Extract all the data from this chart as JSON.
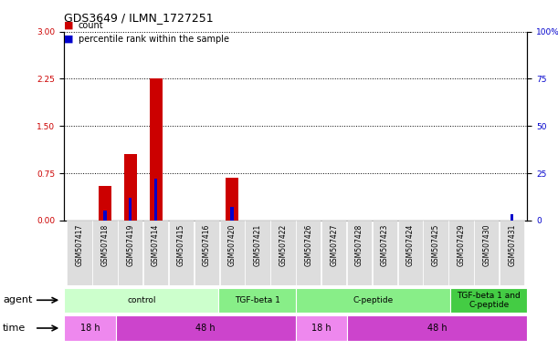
{
  "title": "GDS3649 / ILMN_1727251",
  "samples": [
    "GSM507417",
    "GSM507418",
    "GSM507419",
    "GSM507414",
    "GSM507415",
    "GSM507416",
    "GSM507420",
    "GSM507421",
    "GSM507422",
    "GSM507426",
    "GSM507427",
    "GSM507428",
    "GSM507423",
    "GSM507424",
    "GSM507425",
    "GSM507429",
    "GSM507430",
    "GSM507431"
  ],
  "count_values": [
    0.0,
    0.55,
    1.05,
    2.25,
    0.0,
    0.0,
    0.68,
    0.0,
    0.0,
    0.0,
    0.0,
    0.0,
    0.0,
    0.0,
    0.0,
    0.0,
    0.0,
    0.0
  ],
  "percentile_values": [
    0.0,
    5.5,
    12.0,
    22.0,
    0.0,
    0.0,
    7.0,
    0.0,
    0.0,
    0.0,
    0.0,
    0.0,
    0.0,
    0.0,
    0.0,
    0.0,
    0.0,
    3.5
  ],
  "ylim_left": [
    0,
    3
  ],
  "ylim_right": [
    0,
    100
  ],
  "yticks_left": [
    0,
    0.75,
    1.5,
    2.25,
    3
  ],
  "yticks_right": [
    0,
    25,
    50,
    75,
    100
  ],
  "ytick_labels_right": [
    "0",
    "25",
    "50",
    "75",
    "100%"
  ],
  "count_color": "#cc0000",
  "percentile_color": "#0000cc",
  "agent_groups": [
    {
      "label": "control",
      "start": 0,
      "end": 6,
      "color": "#ccffcc"
    },
    {
      "label": "TGF-beta 1",
      "start": 6,
      "end": 9,
      "color": "#88ee88"
    },
    {
      "label": "C-peptide",
      "start": 9,
      "end": 15,
      "color": "#88ee88"
    },
    {
      "label": "TGF-beta 1 and\nC-peptide",
      "start": 15,
      "end": 18,
      "color": "#44cc44"
    }
  ],
  "time_groups": [
    {
      "label": "18 h",
      "start": 0,
      "end": 2,
      "color": "#ee88ee"
    },
    {
      "label": "48 h",
      "start": 2,
      "end": 9,
      "color": "#cc44cc"
    },
    {
      "label": "18 h",
      "start": 9,
      "end": 11,
      "color": "#ee88ee"
    },
    {
      "label": "48 h",
      "start": 11,
      "end": 18,
      "color": "#cc44cc"
    }
  ],
  "legend_count": "count",
  "legend_percentile": "percentile rank within the sample",
  "tick_fontsize": 6.5,
  "label_fontsize": 8,
  "xtick_bg": "#dddddd"
}
